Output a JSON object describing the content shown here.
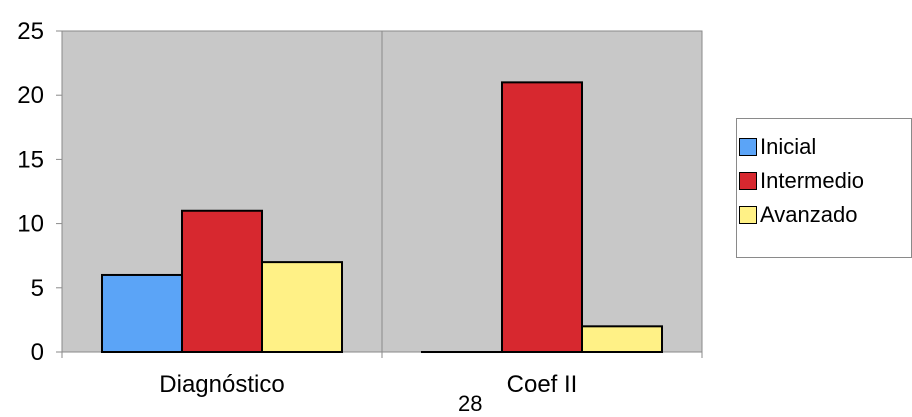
{
  "chart_data": {
    "type": "bar",
    "categories": [
      "Diagnóstico",
      "Coef II"
    ],
    "series": [
      {
        "name": "Inicial",
        "values": [
          6,
          0
        ],
        "color": "#5ba4f7"
      },
      {
        "name": "Intermedio",
        "values": [
          11,
          21
        ],
        "color": "#d7282f"
      },
      {
        "name": "Avanzado",
        "values": [
          7,
          2
        ],
        "color": "#fff186"
      }
    ],
    "yticks": [
      "0",
      "5",
      "10",
      "15",
      "20",
      "25"
    ],
    "ylim": [
      0,
      25
    ],
    "title": "",
    "xlabel": "",
    "ylabel": "",
    "grid": false,
    "legend": "right",
    "plot_background": "#c8c8c8"
  },
  "page_number": "28"
}
